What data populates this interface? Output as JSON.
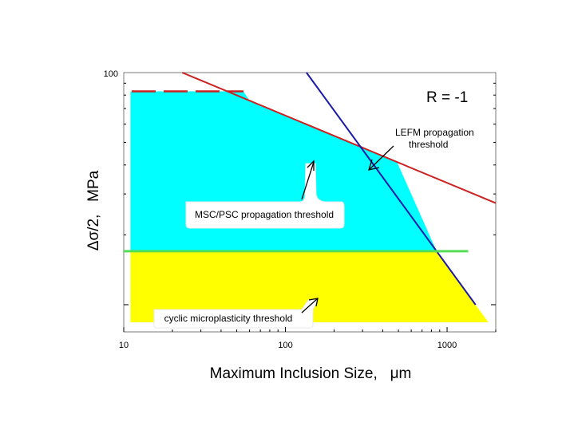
{
  "chart_data": {
    "type": "area",
    "title": "",
    "xlabel": "Maximum Inclusion Size,   μm",
    "ylabel": "Δσ/2,   MPa",
    "xscale": "log",
    "xlim": [
      10,
      2000
    ],
    "xticks": [
      10,
      100,
      1000
    ],
    "xtick_labels": [
      "10",
      "100",
      "1000"
    ],
    "ytick_top_label": "100",
    "grid": false,
    "legend": "none",
    "annotations": {
      "r_ratio": "R = -1",
      "lefm_line1": "LEFM propagation",
      "lefm_line2": "threshold",
      "msc_label": "MSC/PSC propagation threshold",
      "cyclic_label": "cyclic microplasticity threshold"
    },
    "colors": {
      "propagation_region": "#00ffff",
      "microplasticity_region": "#ffff00",
      "msc_line": "#cc2222",
      "lefm_line": "#1a1aa8",
      "cyclic_line": "#55dd55"
    },
    "series": [
      {
        "name": "MSC/PSC propagation threshold",
        "style": "solid (dashed for x < 55)",
        "points": [
          [
            23,
            100
          ],
          [
            2000,
            27.4
          ]
        ]
      },
      {
        "name": "LEFM propagation threshold",
        "points": [
          [
            135,
            100
          ],
          [
            1500,
            10
          ]
        ]
      },
      {
        "name": "cyclic microplasticity threshold",
        "points": [
          [
            10,
            17
          ],
          [
            1350,
            17
          ]
        ]
      }
    ]
  }
}
